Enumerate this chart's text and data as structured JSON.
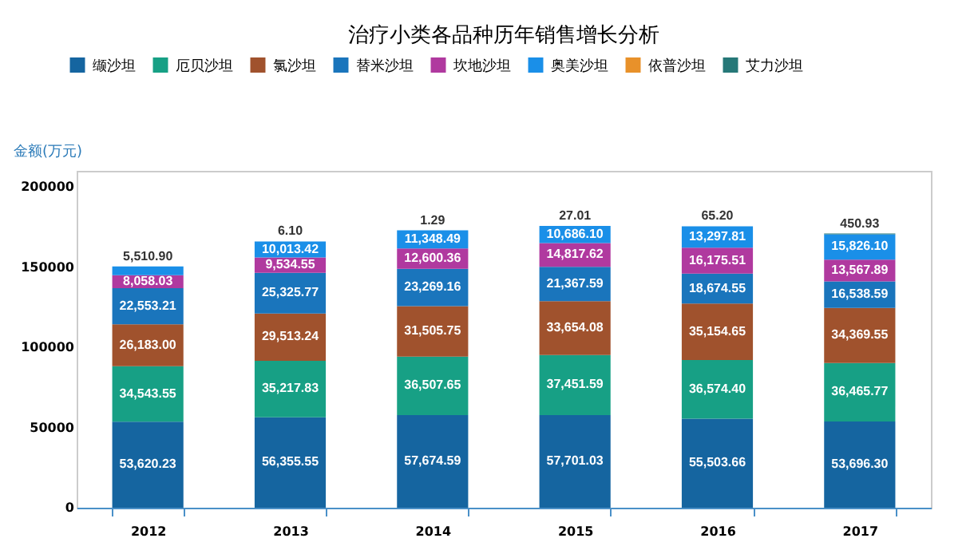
{
  "chart_data": {
    "type": "bar",
    "stacked": true,
    "title": "治疗小类各品种历年销售增长分析",
    "ylabel": "金额(万元)",
    "categories": [
      "2012",
      "2013",
      "2014",
      "2015",
      "2016",
      "2017"
    ],
    "series": [
      {
        "name": "缬沙坦",
        "color": "#1565a0",
        "values": [
          53620.23,
          56355.55,
          57674.59,
          57701.03,
          55503.66,
          53696.3
        ],
        "value_labels": [
          "53,620.23",
          "56,355.55",
          "57,674.59",
          "57,701.03",
          "55,503.66",
          "53,696.30"
        ]
      },
      {
        "name": "厄贝沙坦",
        "color": "#17a085",
        "values": [
          34543.55,
          35217.83,
          36507.65,
          37451.59,
          36574.4,
          36465.77
        ],
        "value_labels": [
          "34,543.55",
          "35,217.83",
          "36,507.65",
          "37,451.59",
          "36,574.40",
          "36,465.77"
        ]
      },
      {
        "name": "氯沙坦",
        "color": "#a0522d",
        "values": [
          26183.0,
          29513.24,
          31505.75,
          33654.08,
          35154.65,
          34369.55
        ],
        "value_labels": [
          "26,183.00",
          "29,513.24",
          "31,505.75",
          "33,654.08",
          "35,154.65",
          "34,369.55"
        ]
      },
      {
        "name": "替米沙坦",
        "color": "#1a75bc",
        "values": [
          22553.21,
          25325.77,
          23269.16,
          21367.59,
          18674.55,
          16538.59
        ],
        "value_labels": [
          "22,553.21",
          "25,325.77",
          "23,269.16",
          "21,367.59",
          "18,674.55",
          "16,538.59"
        ]
      },
      {
        "name": "坎地沙坦",
        "color": "#b0399f",
        "values": [
          8058.03,
          9534.55,
          12600.36,
          14817.62,
          16175.51,
          13567.89
        ],
        "value_labels": [
          "8,058.03",
          "9,534.55",
          "12,600.36",
          "14,817.62",
          "16,175.51",
          "13,567.89"
        ]
      },
      {
        "name": "奥美沙坦",
        "color": "#1a8fe8",
        "values": [
          5510.9,
          10013.42,
          11348.49,
          10686.1,
          13297.81,
          15826.1
        ],
        "value_labels": [
          "5,510.90",
          "10,013.42",
          "11,348.49",
          "10,686.10",
          "13,297.81",
          "15,826.10"
        ]
      },
      {
        "name": "依普沙坦",
        "color": "#e8912a",
        "values": [
          null,
          6.1,
          null,
          null,
          null,
          null
        ],
        "value_labels": [
          null,
          "6.10",
          null,
          null,
          null,
          null
        ]
      },
      {
        "name": "艾力沙坦",
        "color": "#267878",
        "values": [
          null,
          null,
          1.29,
          27.01,
          65.2,
          450.93
        ],
        "value_labels": [
          null,
          null,
          "1.29",
          "27.01",
          "65.20",
          "450.93"
        ]
      }
    ],
    "ylim": [
      0,
      210000
    ],
    "yticks": [
      0,
      50000,
      100000,
      150000,
      200000
    ],
    "legend": "top"
  }
}
